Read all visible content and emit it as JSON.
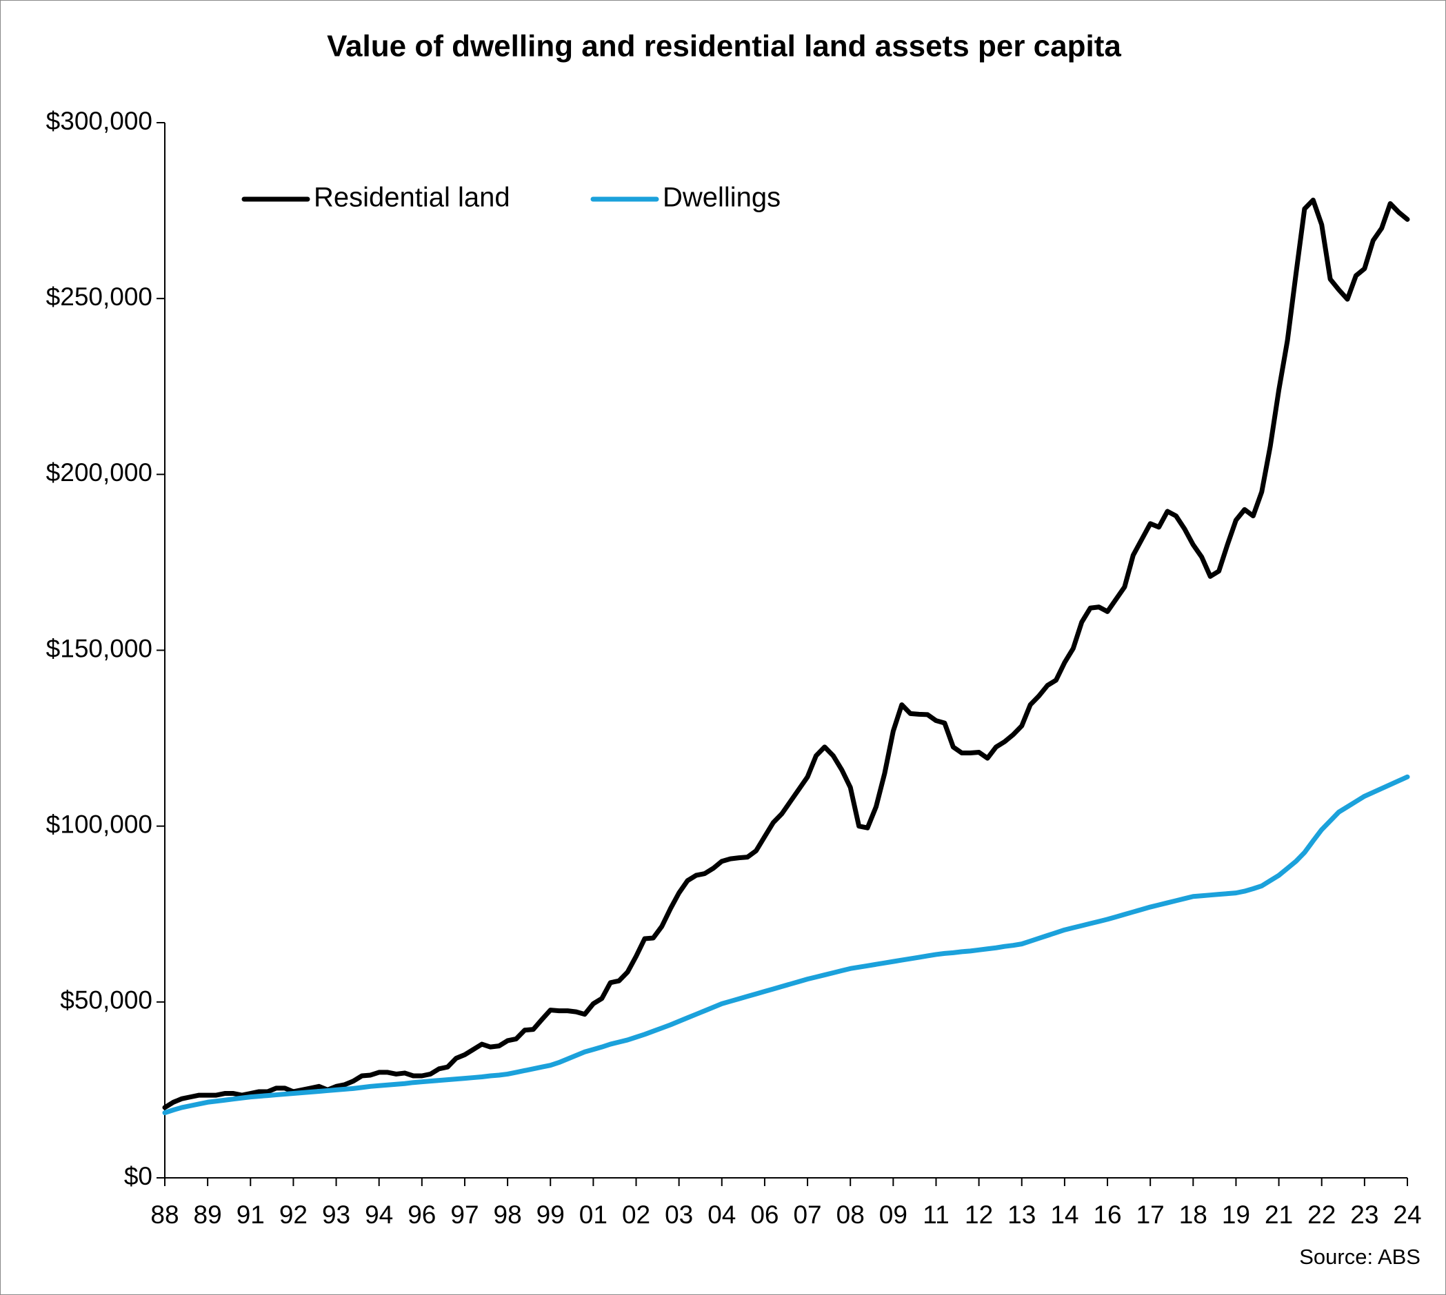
{
  "chart_data": {
    "type": "line",
    "title": "Value of dwelling and residential land assets per capita",
    "source": "Source: ABS",
    "legend": "upper left",
    "grid": false,
    "categories": [
      "88",
      null,
      null,
      null,
      null,
      "89",
      null,
      null,
      null,
      null,
      "91",
      null,
      null,
      null,
      null,
      "92",
      null,
      null,
      null,
      null,
      "93",
      null,
      null,
      null,
      null,
      "94",
      null,
      null,
      null,
      null,
      "96",
      null,
      null,
      null,
      null,
      "97",
      null,
      null,
      null,
      null,
      "98",
      null,
      null,
      null,
      null,
      "99",
      null,
      null,
      null,
      null,
      "01",
      null,
      null,
      null,
      null,
      "02",
      null,
      null,
      null,
      null,
      "03",
      null,
      null,
      null,
      null,
      "04",
      null,
      null,
      null,
      null,
      "06",
      null,
      null,
      null,
      null,
      "07",
      null,
      null,
      null,
      null,
      "08",
      null,
      null,
      null,
      null,
      "09",
      null,
      null,
      null,
      null,
      "11",
      null,
      null,
      null,
      null,
      "12",
      null,
      null,
      null,
      null,
      "13",
      null,
      null,
      null,
      null,
      "14",
      null,
      null,
      null,
      null,
      "16",
      null,
      null,
      null,
      null,
      "17",
      null,
      null,
      null,
      null,
      "18",
      null,
      null,
      null,
      null,
      "19",
      null,
      null,
      null,
      null,
      "21",
      null,
      null,
      null,
      null,
      "22",
      null,
      null,
      null,
      null,
      "23",
      null,
      null,
      null,
      null,
      "24"
    ],
    "series": [
      {
        "name": "Residential land",
        "color": "#000000",
        "values": [
          20000,
          21500,
          22500,
          23000,
          23500,
          23500,
          23500,
          24000,
          24000,
          23500,
          24000,
          24500,
          24500,
          25500,
          25500,
          24500,
          25000,
          25500,
          26000,
          25000,
          26000,
          26500,
          27500,
          29000,
          29200,
          30000,
          30000,
          29500,
          29800,
          29000,
          29000,
          29500,
          31000,
          31500,
          34000,
          35000,
          36500,
          38000,
          37200,
          37500,
          39000,
          39500,
          42000,
          42200,
          45000,
          47700,
          47500,
          47500,
          47200,
          46500,
          49500,
          51000,
          55500,
          56000,
          58500,
          63000,
          68000,
          68200,
          71500,
          76500,
          81000,
          84500,
          86000,
          86500,
          88000,
          90000,
          90700,
          91000,
          91200,
          93000,
          97000,
          101000,
          103500,
          107000,
          110500,
          114000,
          120000,
          122500,
          120000,
          116000,
          111000,
          100000,
          99500,
          105500,
          115000,
          127000,
          134500,
          132000,
          131800,
          131700,
          130000,
          129300,
          122500,
          120800,
          120800,
          121000,
          119300,
          122500,
          124000,
          126000,
          128500,
          134500,
          137000,
          140000,
          141500,
          146500,
          150500,
          158000,
          162000,
          162300,
          161000,
          164500,
          168000,
          177000,
          181500,
          186000,
          185000,
          189500,
          188200,
          184500,
          180000,
          176500,
          171000,
          172500,
          180000,
          187000,
          190000,
          188200,
          195000,
          208000,
          224000,
          238000,
          257000,
          275500,
          278000,
          271000,
          255500,
          252500,
          249800,
          256500,
          258500,
          266500,
          270000,
          277000,
          274500,
          272500
        ]
      },
      {
        "name": "Dwellings",
        "color": "#1ba1db",
        "values": [
          18500,
          19300,
          20000,
          20500,
          21000,
          21500,
          21800,
          22100,
          22400,
          22700,
          23000,
          23200,
          23400,
          23600,
          23800,
          24000,
          24200,
          24400,
          24600,
          24800,
          25000,
          25200,
          25400,
          25700,
          26000,
          26200,
          26400,
          26600,
          26800,
          27100,
          27300,
          27500,
          27700,
          27900,
          28100,
          28300,
          28500,
          28700,
          29000,
          29200,
          29500,
          30000,
          30500,
          31000,
          31500,
          32000,
          32800,
          33800,
          34800,
          35800,
          36500,
          37200,
          38000,
          38600,
          39200,
          40000,
          40800,
          41700,
          42600,
          43500,
          44500,
          45500,
          46500,
          47500,
          48500,
          49500,
          50200,
          50900,
          51600,
          52300,
          53000,
          53700,
          54400,
          55100,
          55800,
          56500,
          57100,
          57700,
          58300,
          58900,
          59500,
          59900,
          60300,
          60700,
          61100,
          61500,
          61900,
          62300,
          62700,
          63100,
          63500,
          63800,
          64000,
          64300,
          64500,
          64800,
          65100,
          65400,
          65800,
          66100,
          66500,
          67300,
          68100,
          68900,
          69700,
          70500,
          71100,
          71700,
          72300,
          72900,
          73500,
          74200,
          74900,
          75600,
          76300,
          77000,
          77600,
          78200,
          78800,
          79400,
          80000,
          80200,
          80400,
          80600,
          80800,
          81000,
          81500,
          82200,
          83000,
          84500,
          86000,
          88000,
          90000,
          92500,
          95800,
          99000,
          101500,
          104000,
          105500,
          107000,
          108500,
          109600,
          110700,
          111800,
          112900,
          114000
        ]
      }
    ],
    "ylim": [
      0,
      300000
    ],
    "yticks": [
      {
        "value": 0,
        "label": "$0"
      },
      {
        "value": 50000,
        "label": "$50,000"
      },
      {
        "value": 100000,
        "label": "$100,000"
      },
      {
        "value": 150000,
        "label": "$150,000"
      },
      {
        "value": 200000,
        "label": "$200,000"
      },
      {
        "value": 250000,
        "label": "$250,000"
      },
      {
        "value": 300000,
        "label": "$300,000"
      }
    ]
  }
}
